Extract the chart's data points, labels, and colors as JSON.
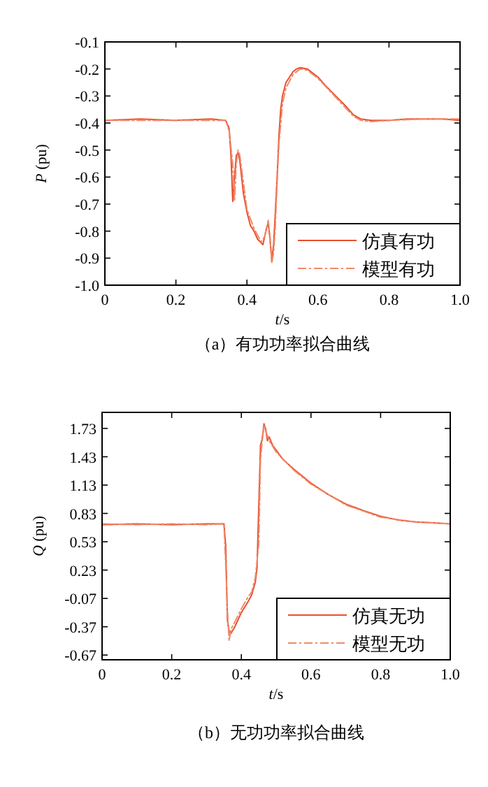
{
  "chart_data": [
    {
      "type": "line",
      "xlabel": "*t*/s",
      "ylabel": "*P* (pu)",
      "annotations": [
        "（a）有功功率拟合曲线"
      ],
      "xlim": [
        0,
        1
      ],
      "ylim": [
        -1.0,
        -0.1
      ],
      "xticks": [
        0,
        0.2,
        0.4,
        0.6,
        0.8,
        {
          "value": 1,
          "label": "1.0"
        }
      ],
      "yticks": [
        {
          "value": -1,
          "label": "-1.0"
        },
        -0.9,
        -0.8,
        -0.7,
        -0.6,
        -0.5,
        -0.4,
        -0.3,
        -0.2,
        -0.1
      ],
      "legend": "bottom right",
      "series": [
        {
          "name": "仿真有功",
          "color": "#e8502f",
          "line_style": "solid",
          "x": [
            0,
            0.1,
            0.2,
            0.3,
            0.34,
            0.35,
            0.355,
            0.36,
            0.365,
            0.37,
            0.375,
            0.38,
            0.39,
            0.4,
            0.41,
            0.42,
            0.43,
            0.445,
            0.455,
            0.46,
            0.465,
            0.47,
            0.475,
            0.48,
            0.485,
            0.49,
            0.495,
            0.5,
            0.51,
            0.53,
            0.54,
            0.55,
            0.57,
            0.6,
            0.62,
            0.65,
            0.68,
            0.7,
            0.72,
            0.75,
            0.8,
            0.85,
            0.9,
            0.95,
            1.0
          ],
          "values": [
            -0.39,
            -0.385,
            -0.39,
            -0.385,
            -0.39,
            -0.42,
            -0.52,
            -0.69,
            -0.6,
            -0.52,
            -0.51,
            -0.54,
            -0.66,
            -0.73,
            -0.78,
            -0.8,
            -0.83,
            -0.85,
            -0.79,
            -0.77,
            -0.83,
            -0.91,
            -0.85,
            -0.73,
            -0.6,
            -0.45,
            -0.35,
            -0.3,
            -0.25,
            -0.21,
            -0.2,
            -0.195,
            -0.2,
            -0.23,
            -0.26,
            -0.3,
            -0.34,
            -0.37,
            -0.385,
            -0.39,
            -0.39,
            -0.385,
            -0.385,
            -0.385,
            -0.39
          ]
        },
        {
          "name": "模型有功",
          "color": "#f08a6a",
          "line_style": "dashdot",
          "x": [
            0,
            0.1,
            0.2,
            0.3,
            0.34,
            0.35,
            0.36,
            0.365,
            0.37,
            0.375,
            0.38,
            0.39,
            0.4,
            0.42,
            0.44,
            0.45,
            0.46,
            0.465,
            0.47,
            0.475,
            0.48,
            0.485,
            0.49,
            0.5,
            0.51,
            0.53,
            0.55,
            0.57,
            0.6,
            0.65,
            0.7,
            0.72,
            0.75,
            0.8,
            0.9,
            1.0
          ],
          "values": [
            -0.39,
            -0.39,
            -0.39,
            -0.39,
            -0.39,
            -0.43,
            -0.55,
            -0.69,
            -0.55,
            -0.5,
            -0.52,
            -0.62,
            -0.72,
            -0.79,
            -0.84,
            -0.82,
            -0.76,
            -0.82,
            -0.92,
            -0.88,
            -0.78,
            -0.62,
            -0.48,
            -0.33,
            -0.27,
            -0.22,
            -0.2,
            -0.205,
            -0.235,
            -0.305,
            -0.375,
            -0.39,
            -0.395,
            -0.39,
            -0.385,
            -0.385
          ]
        }
      ]
    },
    {
      "type": "line",
      "xlabel": "*t*/s",
      "ylabel": "*Q* (pu)",
      "annotations": [
        "（b）无功功率拟合曲线"
      ],
      "xlim": [
        0,
        1
      ],
      "ylim": [
        -0.72,
        1.9
      ],
      "xticks": [
        0,
        0.2,
        0.4,
        0.6,
        0.8,
        {
          "value": 1,
          "label": "1.0"
        }
      ],
      "yticks": [
        -0.67,
        -0.37,
        -0.07,
        0.23,
        0.53,
        0.83,
        1.13,
        1.43,
        1.73
      ],
      "legend": "bottom right",
      "series": [
        {
          "name": "仿真无功",
          "color": "#e8502f",
          "line_style": "solid",
          "x": [
            0,
            0.1,
            0.2,
            0.3,
            0.35,
            0.355,
            0.36,
            0.365,
            0.37,
            0.38,
            0.39,
            0.4,
            0.42,
            0.43,
            0.44,
            0.445,
            0.45,
            0.455,
            0.46,
            0.465,
            0.47,
            0.475,
            0.48,
            0.49,
            0.5,
            0.52,
            0.55,
            0.6,
            0.65,
            0.7,
            0.75,
            0.8,
            0.85,
            0.9,
            0.95,
            1.0
          ],
          "values": [
            0.71,
            0.72,
            0.71,
            0.72,
            0.72,
            0.5,
            -0.3,
            -0.42,
            -0.44,
            -0.38,
            -0.3,
            -0.22,
            -0.1,
            -0.03,
            0.1,
            0.25,
            0.9,
            1.55,
            1.62,
            1.78,
            1.72,
            1.6,
            1.64,
            1.55,
            1.5,
            1.4,
            1.3,
            1.15,
            1.03,
            0.93,
            0.86,
            0.8,
            0.76,
            0.74,
            0.73,
            0.72
          ]
        },
        {
          "name": "模型无功",
          "color": "#f08a6a",
          "line_style": "dashdot",
          "x": [
            0,
            0.1,
            0.2,
            0.3,
            0.35,
            0.355,
            0.36,
            0.365,
            0.37,
            0.38,
            0.4,
            0.42,
            0.43,
            0.44,
            0.45,
            0.455,
            0.46,
            0.465,
            0.47,
            0.48,
            0.5,
            0.55,
            0.6,
            0.7,
            0.8,
            0.9,
            1.0
          ],
          "values": [
            0.72,
            0.71,
            0.72,
            0.71,
            0.72,
            0.3,
            -0.2,
            -0.52,
            -0.4,
            -0.33,
            -0.18,
            -0.05,
            0.0,
            0.15,
            0.5,
            1.4,
            1.6,
            1.76,
            1.7,
            1.6,
            1.48,
            1.29,
            1.14,
            0.92,
            0.79,
            0.74,
            0.72
          ]
        }
      ]
    }
  ]
}
